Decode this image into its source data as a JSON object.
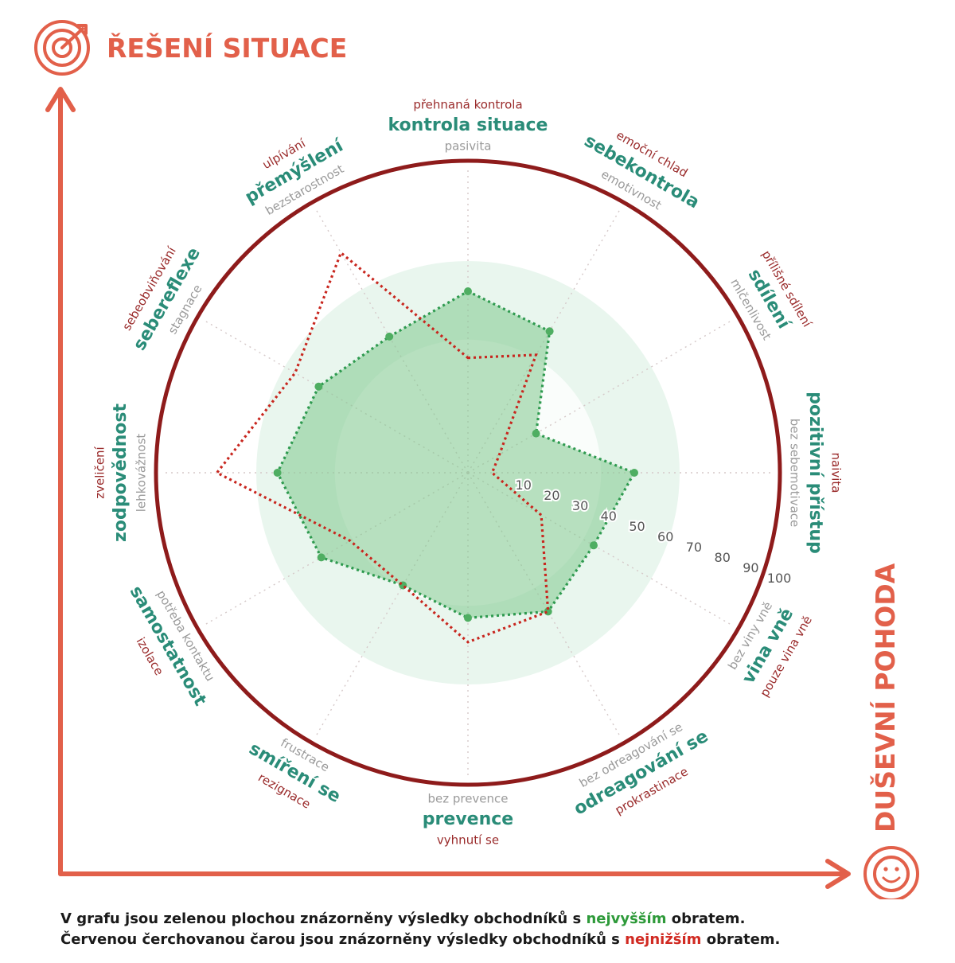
{
  "chart_data": {
    "type": "radar",
    "r_ticks": [
      10,
      20,
      30,
      40,
      50,
      60,
      70,
      80,
      90,
      100
    ],
    "rlim": [
      0,
      100
    ],
    "grid": true,
    "axis_titles": {
      "y": "ŘEŠENÍ SITUACE",
      "x": "DUŠEVNÍ POHODA"
    },
    "axes": [
      {
        "label": "kontrola situace",
        "high": "přehnaná kontrola",
        "low": "pasivita"
      },
      {
        "label": "sebekontrola",
        "high": "emoční chlad",
        "low": "emotivnost"
      },
      {
        "label": "sdílení",
        "high": "přílišné sdílení",
        "low": "mlčenlivost"
      },
      {
        "label": "pozitivní přístup",
        "high": "naivita",
        "low": "bez sebemotivace"
      },
      {
        "label": "vina vně",
        "high": "pouze vina vně",
        "low": "bez viny vně"
      },
      {
        "label": "odreagování se",
        "high": "prokrastinace",
        "low": "bez odreagování se"
      },
      {
        "label": "prevence",
        "high": "vyhnutí se",
        "low": "bez prevence"
      },
      {
        "label": "smíření se",
        "high": "rezignace",
        "low": "frustrace"
      },
      {
        "label": "samostatnost",
        "high": "izolace",
        "low": "potřeba kontaktu"
      },
      {
        "label": "zodpovědnost",
        "high": "zveličení",
        "low": "lehkovážnost"
      },
      {
        "label": "sebereflexe",
        "high": "sebeobviňování",
        "low": "stagnace"
      },
      {
        "label": "přemýšlení",
        "high": "ulpívání",
        "low": "bezstarostnost"
      }
    ],
    "series": [
      {
        "color": "#2e9a4f",
        "fill": "#7fc98e",
        "style": "dotted, filled, markers",
        "values": [
          60,
          54,
          26,
          55,
          48,
          53,
          48,
          43,
          56,
          63,
          57,
          52
        ]
      },
      {
        "color": "#c8261e",
        "style": "dotted, no fill",
        "values": [
          38,
          45,
          12,
          8,
          28,
          53,
          56,
          43,
          45,
          83,
          66,
          84
        ]
      }
    ]
  },
  "caption": {
    "line1_before": "V grafu jsou zelenou plochou znázorněny výsledky obchodníků s ",
    "line1_highlight": "nejvyšším",
    "line1_after": " obratem.",
    "line2_before": "Červenou čerchovanou čarou jsou znázorněny výsledky obchodníků s ",
    "line2_highlight": "nejnižším",
    "line2_after": " obratem."
  },
  "colors": {
    "accent": "#e2604a",
    "teal": "#2a8c78",
    "dark_red": "#8a1a1a",
    "ring": "#8e1b1b"
  },
  "icons": {
    "top": "target-icon",
    "bottom": "smiley-icon"
  }
}
